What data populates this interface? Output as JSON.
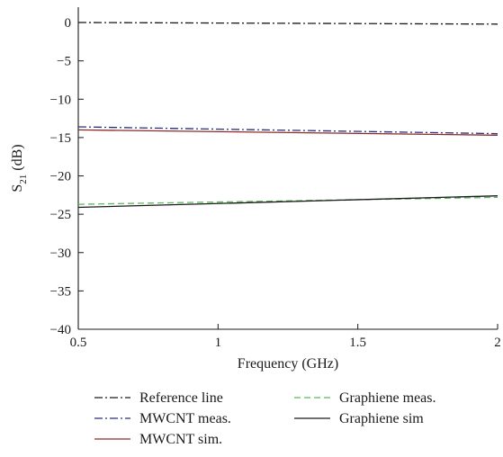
{
  "chart_data": {
    "type": "line",
    "title": "",
    "xlabel": "Frequency (GHz)",
    "ylabel": {
      "main": "S",
      "sub": "21",
      "unit": " (dB)"
    },
    "xlim": [
      0.5,
      2
    ],
    "ylim": [
      -40,
      2
    ],
    "xticks": [
      0.5,
      1,
      1.5,
      2
    ],
    "xtick_labels": [
      "0.5",
      "1",
      "1.5",
      "2"
    ],
    "yticks": [
      0,
      -5,
      -10,
      -15,
      -20,
      -25,
      -30,
      -35,
      -40
    ],
    "ytick_labels": [
      "0",
      "−5",
      "−10",
      "−15",
      "−20",
      "−25",
      "−30",
      "−35",
      "−40"
    ],
    "grid": false,
    "legend_position": "bottom",
    "series": [
      {
        "name": "Reference line",
        "color": "#1a1a1a",
        "dash": "dashdot",
        "x": [
          0.5,
          2
        ],
        "y": [
          0.0,
          -0.2
        ]
      },
      {
        "name": "MWCNT meas.",
        "color": "#2b2f7a",
        "dash": "dashdot",
        "x": [
          0.5,
          2
        ],
        "y": [
          -13.6,
          -14.5
        ]
      },
      {
        "name": "MWCNT sim.",
        "color": "#8b2a2a",
        "dash": "solid",
        "x": [
          0.5,
          2
        ],
        "y": [
          -14.0,
          -14.7
        ]
      },
      {
        "name": "Graphiene meas.",
        "color": "#5cb85c",
        "dash": "dashed",
        "x": [
          0.5,
          2
        ],
        "y": [
          -23.7,
          -22.8
        ]
      },
      {
        "name": "Graphiene sim",
        "color": "#1a1a1a",
        "dash": "solid",
        "x": [
          0.5,
          2
        ],
        "y": [
          -24.1,
          -22.6
        ]
      }
    ]
  }
}
